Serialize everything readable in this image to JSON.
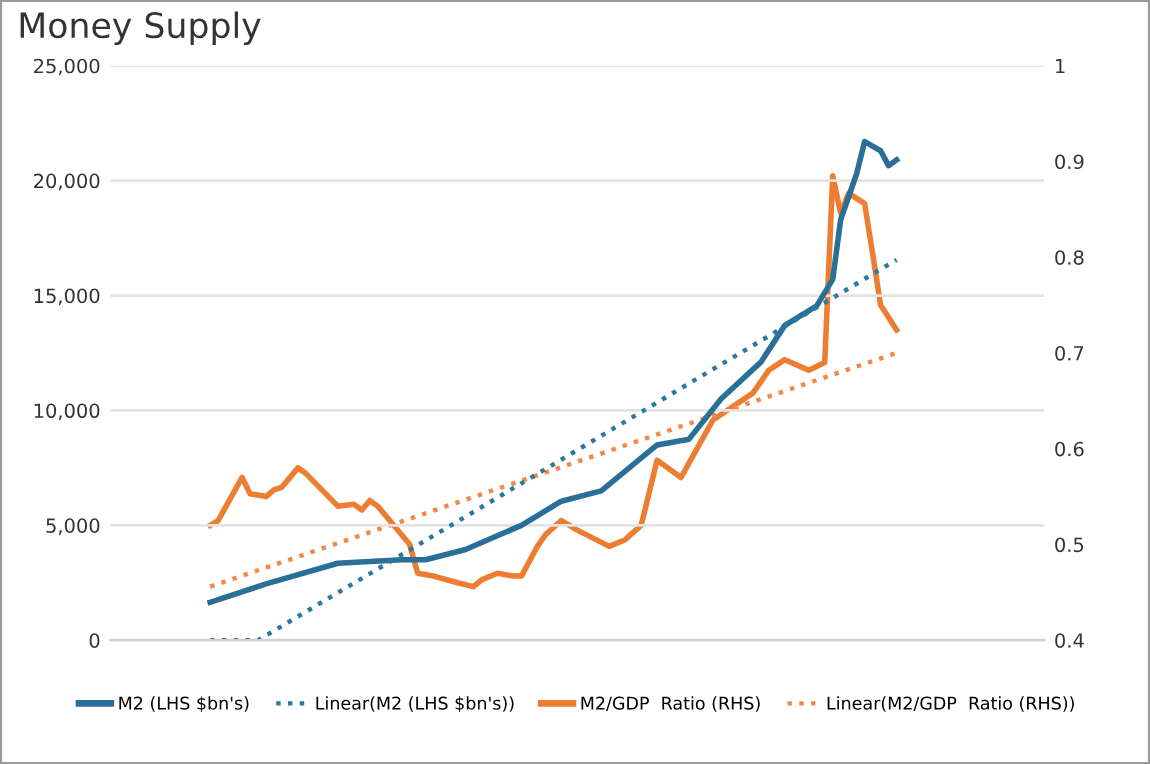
{
  "chart_data": {
    "type": "line",
    "title": "Money Supply",
    "categories": [
      null,
      null,
      null,
      null,
      null,
      null,
      null,
      null,
      null,
      null,
      null,
      null,
      null,
      null,
      null,
      null,
      null,
      null,
      null,
      null,
      null,
      null,
      null,
      null,
      null,
      null,
      null,
      null,
      null,
      null,
      null,
      null,
      null,
      null,
      null,
      null,
      null,
      null,
      null,
      null,
      null,
      null,
      null,
      null,
      null,
      null,
      null,
      null,
      null,
      null,
      null,
      null,
      null,
      null,
      null,
      null,
      null,
      null,
      null,
      null,
      null,
      null,
      null,
      null,
      null,
      null,
      null,
      null,
      null,
      null,
      null,
      null,
      null,
      null,
      null,
      null,
      null,
      null,
      null,
      null,
      null,
      null,
      null,
      null,
      null,
      null,
      null,
      null,
      null,
      null,
      null,
      null,
      null,
      null,
      null,
      null,
      null,
      null,
      null,
      null,
      null,
      null,
      null,
      null,
      null,
      null,
      null,
      null,
      null,
      null,
      null,
      null,
      null,
      null,
      null,
      null,
      null
    ],
    "series": [
      {
        "name": "M2 (LHS $bn's)",
        "color": "#2a6f97",
        "line_style": "solid",
        "values": [
          null,
          null,
          null,
          null,
          null,
          null,
          null,
          null,
          null,
          null,
          null,
          null,
          1650,
          null,
          null,
          null,
          null,
          null,
          null,
          2450,
          null,
          null,
          null,
          null,
          null,
          null,
          null,
          null,
          3350,
          null,
          null,
          null,
          null,
          null,
          null,
          null,
          3500,
          null,
          null,
          3500,
          null,
          null,
          null,
          null,
          3950,
          null,
          null,
          null,
          null,
          null,
          null,
          5000,
          null,
          null,
          null,
          null,
          6050,
          null,
          null,
          null,
          null,
          6500,
          null,
          null,
          null,
          null,
          null,
          null,
          8500,
          null,
          null,
          null,
          8750,
          null,
          null,
          null,
          10500,
          null,
          null,
          null,
          null,
          12100,
          null,
          null,
          13700,
          null,
          null,
          null,
          14550,
          null,
          15700,
          18300,
          null,
          20300,
          21700,
          null,
          21300,
          20650,
          20900,
          null,
          null,
          null,
          null,
          null,
          null,
          null,
          null,
          null,
          null,
          null,
          null,
          null,
          null,
          null,
          null,
          null,
          null
        ]
      },
      {
        "name": "Linear(M2 (LHS $bn's))",
        "color": "#2a7aa0",
        "line_style": "dotted",
        "values": [
          null,
          null,
          null,
          null,
          null,
          null,
          null,
          null,
          null,
          null,
          null,
          null,
          0,
          null,
          null,
          null,
          null,
          null,
          0,
          null,
          null,
          null,
          null,
          null,
          null,
          null,
          null,
          null,
          null,
          null,
          null,
          null,
          null,
          null,
          null,
          null,
          null,
          null,
          null,
          null,
          null,
          null,
          null,
          null,
          null,
          null,
          null,
          null,
          null,
          null,
          null,
          null,
          null,
          null,
          null,
          null,
          null,
          null,
          null,
          null,
          null,
          null,
          null,
          null,
          null,
          null,
          null,
          null,
          null,
          null,
          null,
          null,
          null,
          null,
          null,
          null,
          null,
          null,
          null,
          null,
          null,
          null,
          null,
          null,
          null,
          null,
          null,
          null,
          null,
          null,
          null,
          null,
          null,
          null,
          null,
          null,
          null,
          null,
          16550,
          null,
          null,
          null,
          null,
          null,
          null,
          null,
          null,
          null,
          null,
          null,
          null,
          null,
          null,
          null,
          null,
          null,
          null
        ]
      },
      {
        "name": "M2/GDP  Ratio (RHS)",
        "color": "#ed7d31",
        "line_style": "solid",
        "axis": "y2",
        "values": [
          null,
          null,
          null,
          null,
          null,
          null,
          null,
          null,
          null,
          null,
          null,
          null,
          0.52,
          0.525,
          0.54,
          null,
          0.57,
          0.553,
          null,
          0.55,
          0.557,
          0.56,
          null,
          0.58,
          0.574,
          null,
          0.557,
          null,
          0.54,
          null,
          0.542,
          0.536,
          0.546,
          0.54,
          null,
          0.52,
          null,
          0.5,
          0.47,
          null,
          0.467,
          null,
          null,
          0.46,
          null,
          0.456,
          0.463,
          null,
          0.47,
          null,
          0.467,
          0.467,
          null,
          0.498,
          0.51,
          null,
          0.525,
          null,
          0.515,
          null,
          null,
          null,
          0.498,
          null,
          0.505,
          null,
          0.52,
          null,
          0.588,
          null,
          null,
          0.57,
          null,
          0.6,
          null,
          0.63,
          null,
          null,
          0.647,
          null,
          0.658,
          null,
          0.682,
          null,
          0.693,
          null,
          null,
          0.682,
          null,
          0.69,
          0.885,
          0.846,
          0.867,
          null,
          0.856,
          0.804,
          0.75,
          null,
          0.724,
          null,
          null,
          null,
          null,
          null,
          null,
          null,
          null,
          null,
          null,
          null,
          null,
          null,
          null,
          null,
          null,
          null,
          null
        ]
      },
      {
        "name": "Linear(M2/GDP  Ratio (RHS))",
        "color": "#f08a4b",
        "line_style": "dotted",
        "axis": "y2",
        "values": [
          null,
          null,
          null,
          null,
          null,
          null,
          null,
          null,
          null,
          null,
          null,
          null,
          0.456,
          null,
          null,
          null,
          null,
          null,
          null,
          null,
          null,
          null,
          null,
          null,
          null,
          null,
          null,
          null,
          null,
          null,
          null,
          null,
          null,
          null,
          null,
          null,
          null,
          null,
          null,
          null,
          null,
          null,
          null,
          null,
          null,
          null,
          null,
          null,
          null,
          null,
          null,
          null,
          null,
          null,
          null,
          null,
          null,
          null,
          null,
          null,
          null,
          null,
          null,
          null,
          null,
          null,
          null,
          null,
          null,
          null,
          null,
          null,
          null,
          null,
          null,
          null,
          null,
          null,
          null,
          null,
          null,
          null,
          null,
          null,
          null,
          null,
          null,
          null,
          null,
          null,
          null,
          null,
          null,
          null,
          null,
          null,
          null,
          null,
          0.7,
          null,
          null,
          null,
          null,
          null,
          null,
          null,
          null,
          null,
          null,
          null,
          null,
          null,
          null,
          null,
          null,
          null,
          null
        ]
      }
    ],
    "ylim": [
      0,
      25000
    ],
    "yticks": [
      0,
      {
        "value": 5000,
        "label": "5,000"
      },
      {
        "value": 10000,
        "label": "10,000"
      },
      {
        "value": 15000,
        "label": "15,000"
      },
      {
        "value": 20000,
        "label": "20,000"
      },
      {
        "value": 25000,
        "label": "25,000"
      }
    ],
    "y2lim": [
      0.4,
      1
    ],
    "y2ticks": [
      0.4,
      0.5,
      0.6,
      0.7,
      0.8,
      0.9,
      1
    ],
    "grid": "y",
    "legend": "bottom"
  }
}
